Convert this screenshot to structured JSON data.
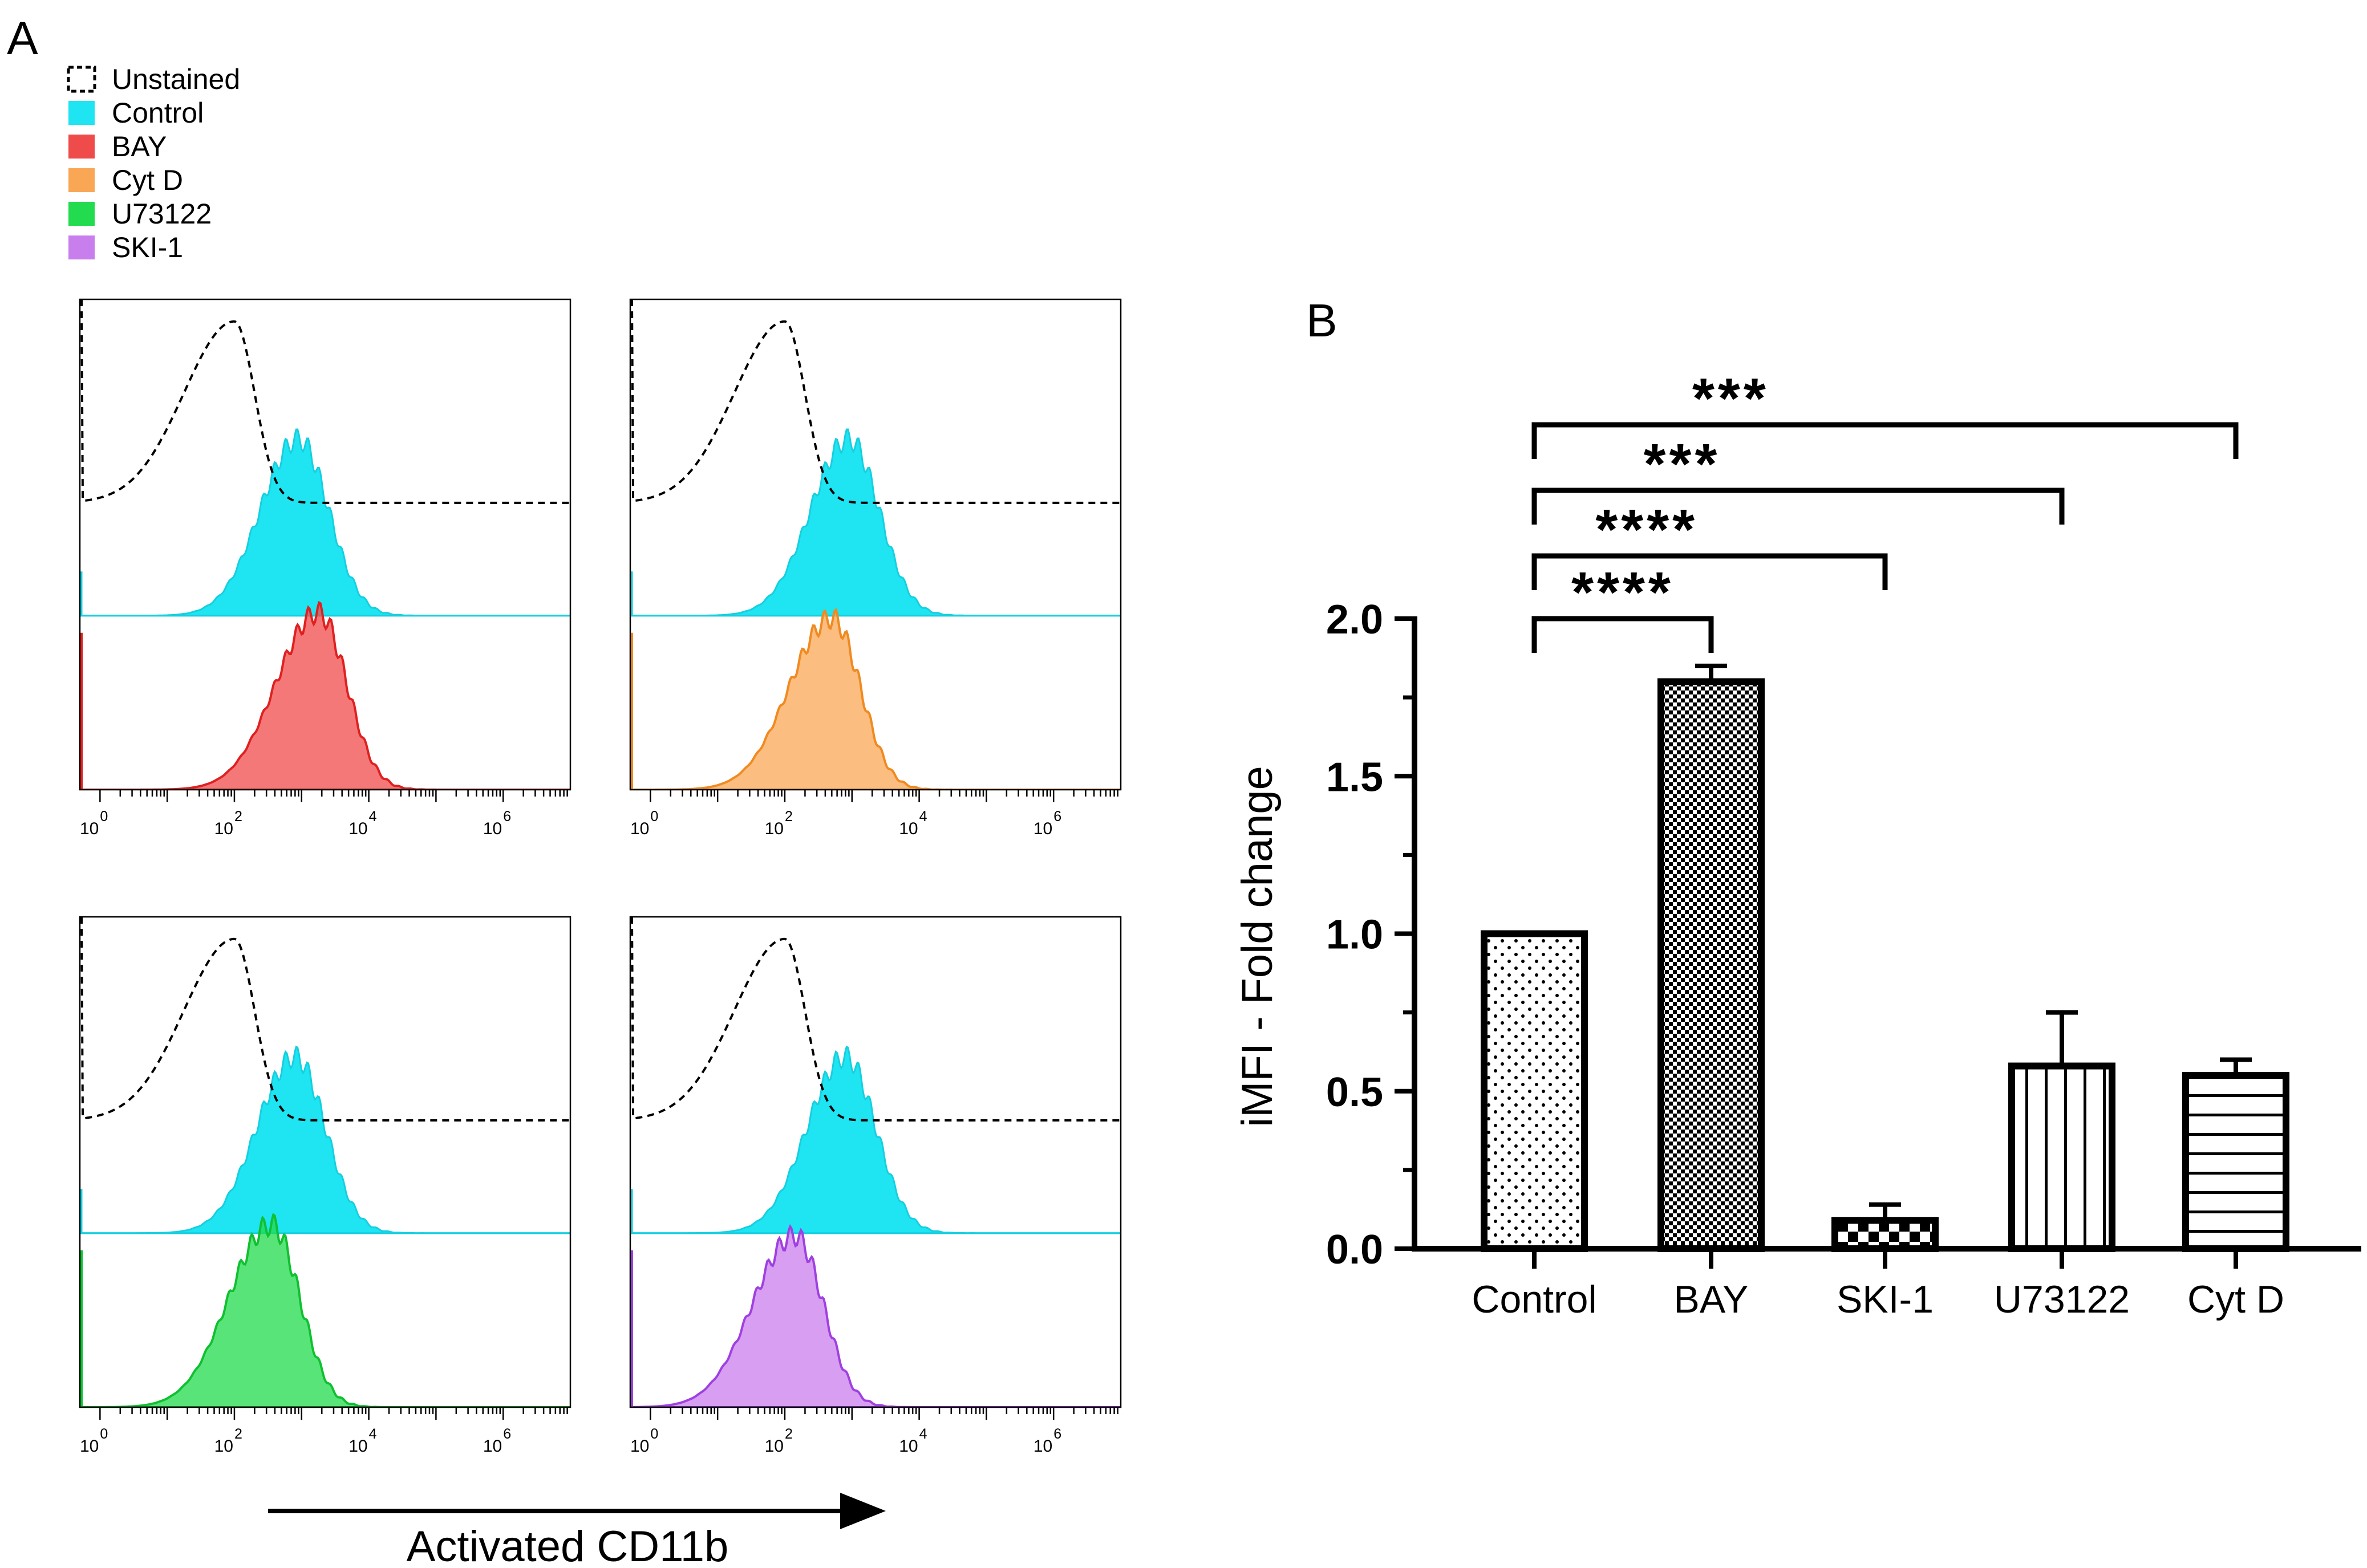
{
  "panel_labels": {
    "a": "A",
    "b": "B"
  },
  "colors": {
    "Control": "#1FE4F2",
    "BAY": "#F04B4B",
    "Cyt D": "#F9A755",
    "U73122": "#22DB4E",
    "SKI-1": "#C97EEE",
    "Control_line": "#15CFDF",
    "BAY_line": "#E02020",
    "Cyt D_line": "#F08A20",
    "U73122_line": "#10C030",
    "SKI-1_line": "#A040E0"
  },
  "chart_data": [
    {
      "type": "histogram",
      "panel": "A",
      "legend": [
        {
          "label": "Unstained",
          "style": "dashed"
        },
        {
          "label": "Control",
          "style": "fill"
        },
        {
          "label": "BAY",
          "style": "fill"
        },
        {
          "label": "Cyt D",
          "style": "fill"
        },
        {
          "label": "U73122",
          "style": "fill"
        },
        {
          "label": "SKI-1",
          "style": "fill"
        }
      ],
      "legend_position": "top-left",
      "xscale": "log10",
      "xlim": [
        -0.3,
        7.0
      ],
      "x_tick_exponents": [
        "0",
        "2",
        "4",
        "6"
      ],
      "xlabel": "Activated CD11b",
      "subplots": [
        {
          "position": "top-left",
          "treatment": "BAY",
          "unstained_peak": 2.0,
          "control_peak": 2.95,
          "treatment_peak": 3.25,
          "treatment_height": 0.95
        },
        {
          "position": "top-right",
          "treatment": "Cyt D",
          "unstained_peak": 2.0,
          "control_peak": 2.95,
          "treatment_peak": 2.7,
          "treatment_height": 0.92
        },
        {
          "position": "bottom-left",
          "treatment": "U73122",
          "unstained_peak": 2.0,
          "control_peak": 2.9,
          "treatment_peak": 2.55,
          "treatment_height": 0.98
        },
        {
          "position": "bottom-right",
          "treatment": "SKI-1",
          "unstained_peak": 2.0,
          "control_peak": 2.9,
          "treatment_peak": 2.15,
          "treatment_height": 0.92
        }
      ]
    },
    {
      "type": "bar",
      "panel": "B",
      "categories": [
        "Control",
        "BAY",
        "SKI-1",
        "U73122",
        "Cyt D"
      ],
      "values": [
        1.0,
        1.8,
        0.09,
        0.58,
        0.55
      ],
      "errors": [
        0.0,
        0.05,
        0.05,
        0.17,
        0.05
      ],
      "patterns": [
        "dots",
        "checker",
        "checker-light",
        "vertical",
        "horizontal"
      ],
      "ylabel": "iMFI - Fold change",
      "xlabel": "",
      "ylim": [
        0,
        2.0
      ],
      "yticks": [
        "0.0",
        "0.5",
        "1.0",
        "1.5",
        "2.0"
      ],
      "significance": [
        {
          "from": "Control",
          "to": "BAY",
          "label": "****"
        },
        {
          "from": "Control",
          "to": "SKI-1",
          "label": "****"
        },
        {
          "from": "Control",
          "to": "U73122",
          "label": "***"
        },
        {
          "from": "Control",
          "to": "Cyt D",
          "label": "***"
        }
      ]
    }
  ]
}
